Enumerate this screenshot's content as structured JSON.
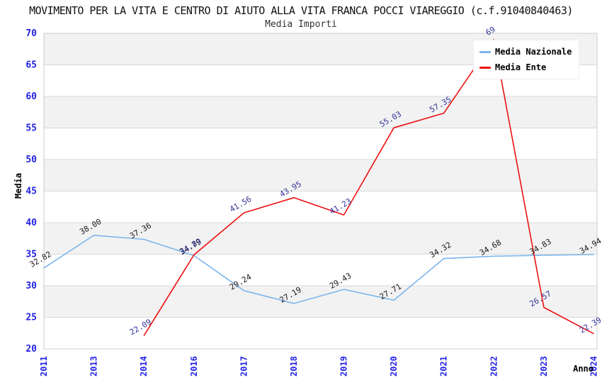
{
  "title": "MOVIMENTO PER LA VITA E CENTRO DI AIUTO ALLA VITA FRANCA POCCI VIAREGGIO (c.f.91040840463)",
  "subtitle": "Media Importi",
  "legend": {
    "position": "top-right",
    "items": [
      {
        "label": "Media Nazionale",
        "color": "#7cb5ec"
      },
      {
        "label": "Media Ente",
        "color": "#ee1111"
      }
    ]
  },
  "colors": {
    "nazionale_line": "#7cb5ec",
    "ente_line": "#ee1111",
    "nazionale_label": "#1a1a1a",
    "ente_label": "#333399",
    "axis_tick": "#2323e6",
    "axis_title": "#000000",
    "band_gray": "#f2f2f2",
    "band_white": "#ffffff",
    "gridline": "#d9d9d9",
    "plot_border": "#cccccc"
  },
  "chart_data": {
    "type": "line",
    "title": "Media Importi",
    "xlabel": "Anno",
    "ylabel": "Media",
    "categories": [
      "2011",
      "2013",
      "2014",
      "2016",
      "2017",
      "2018",
      "2019",
      "2020",
      "2021",
      "2022",
      "2023",
      "2024"
    ],
    "series": [
      {
        "name": "Media Nazionale",
        "color": "#7cb5ec",
        "label_color": "#1a1a1a",
        "values": [
          32.82,
          38.0,
          37.36,
          34.79,
          29.24,
          27.19,
          29.43,
          27.71,
          34.32,
          34.68,
          34.83,
          34.94
        ],
        "labels": [
          "32.82",
          "38.00",
          "37.36",
          "34.79",
          "29.24",
          "27.19",
          "29.43",
          "27.71",
          "34.32",
          "34.68",
          "34.83",
          "34.94"
        ]
      },
      {
        "name": "Media Ente",
        "color": "#ee1111",
        "label_color": "#333399",
        "values": [
          null,
          null,
          22.09,
          34.89,
          41.56,
          43.95,
          41.23,
          55.03,
          57.35,
          69.0,
          26.57,
          22.39
        ],
        "labels": [
          null,
          null,
          "22.09",
          "34.89",
          "41.56",
          "43.95",
          "41.23",
          "55.03",
          "57.35",
          "69",
          "26.57",
          "22.39"
        ]
      }
    ],
    "ylim": [
      20,
      70
    ],
    "ytick_step": 5,
    "yticks": [
      20,
      25,
      30,
      35,
      40,
      45,
      50,
      55,
      60,
      65,
      70
    ],
    "grid": "horizontal-bands-alternating",
    "legend_position": "top-right",
    "x_tick_rotation": -90,
    "data_label_rotation": -30
  }
}
